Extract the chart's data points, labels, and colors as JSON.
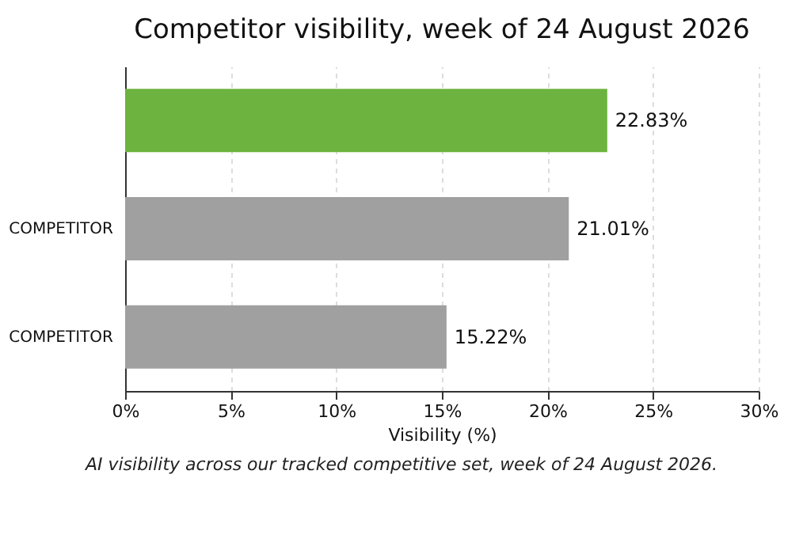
{
  "chart_data": {
    "type": "bar",
    "orientation": "horizontal",
    "title": "Competitor visibility, week of 24 August 2026",
    "xlabel": "Visibility (%)",
    "categories": [
      null,
      "COMPETITOR",
      "COMPETITOR"
    ],
    "values": [
      22.83,
      21.01,
      15.22
    ],
    "colors": [
      "#6db33f",
      "#a0a0a0",
      "#a0a0a0"
    ],
    "value_labels": [
      "22.83%",
      "21.01%",
      "15.22%"
    ],
    "xlim": [
      0,
      30
    ],
    "xticks": [
      {
        "value": 0,
        "label": "0%"
      },
      {
        "value": 5,
        "label": "5%"
      },
      {
        "value": 10,
        "label": "10%"
      },
      {
        "value": 15,
        "label": "15%"
      },
      {
        "value": 20,
        "label": "20%"
      },
      {
        "value": 25,
        "label": "25%"
      },
      {
        "value": 30,
        "label": "30%"
      }
    ],
    "grid": "x",
    "annotations": [
      "AI visibility across our tracked competitive set, week of 24 August 2026."
    ]
  }
}
